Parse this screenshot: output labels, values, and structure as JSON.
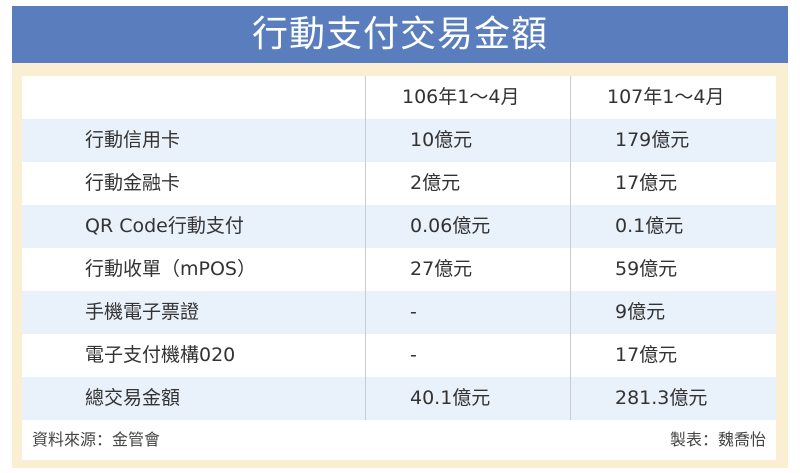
{
  "title": "行動支付交易金額",
  "columns": [
    "",
    "106年1～4月",
    "107年1～4月"
  ],
  "rows": [
    [
      "行動信用卡",
      "10億元",
      "179億元"
    ],
    [
      "行動金融卡",
      "2億元",
      "17億元"
    ],
    [
      "QR Code行動支付",
      "0.06億元",
      "0.1億元"
    ],
    [
      "行動收單（mPOS）",
      "27億元",
      "59億元"
    ],
    [
      "手機電子票證",
      "-",
      "9億元"
    ],
    [
      "電子支付機構020",
      "-",
      "17億元"
    ],
    [
      "總交易金額",
      "40.1億元",
      "281.3億元"
    ]
  ],
  "footer": {
    "source": "資料來源：金管會",
    "author": "製表：魏喬怡"
  },
  "colors": {
    "title_bar": "#5a7ebd",
    "frame": "#fbefd3",
    "row_alt": "#e9f1fb"
  }
}
